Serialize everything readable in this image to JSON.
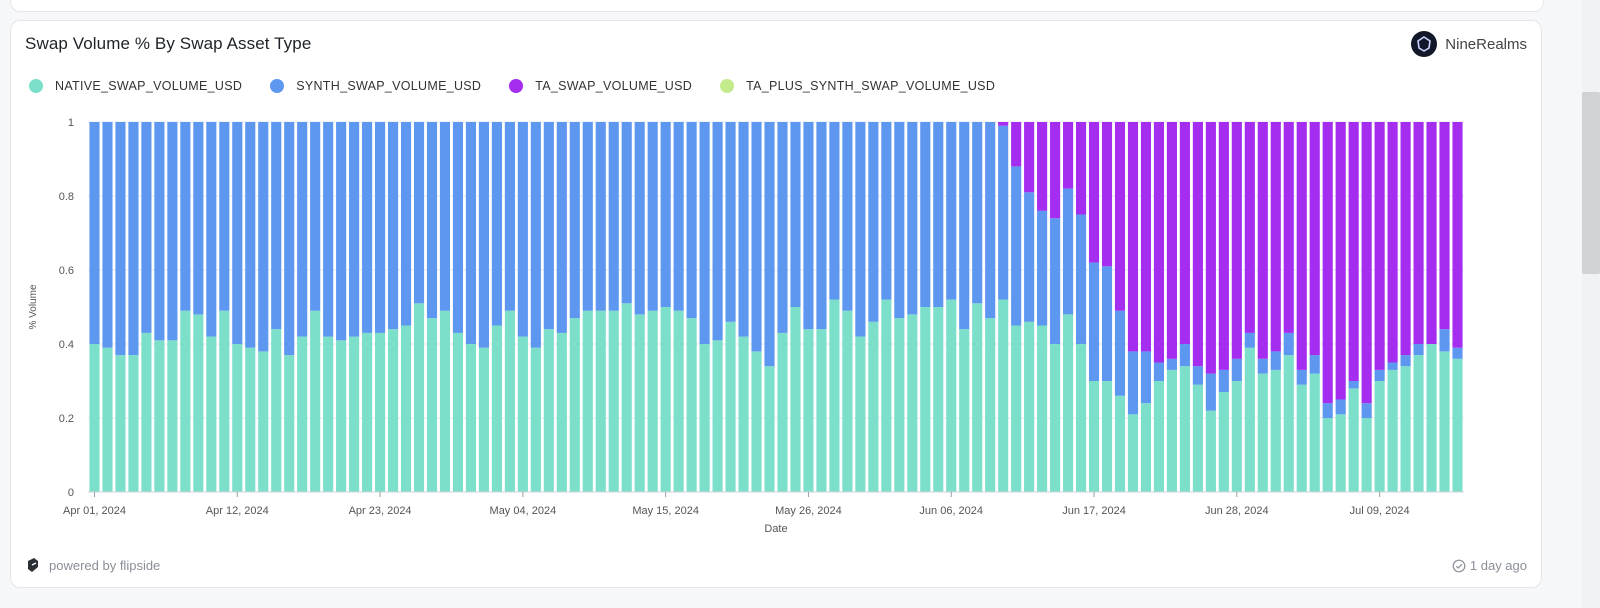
{
  "card": {
    "title": "Swap Volume % By Swap Asset Type",
    "brand": "NineRealms",
    "powered_by": "powered by flipside",
    "updated": "1 day ago"
  },
  "colors": {
    "native": "#7bdfca",
    "synth": "#5e97f0",
    "ta": "#a52df0",
    "ta_plus_synth": "#c3eb8c"
  },
  "chart_data": {
    "type": "bar",
    "stacked": true,
    "normalized": true,
    "title": "Swap Volume % By Swap Asset Type",
    "xlabel": "Date",
    "ylabel": "% Volume",
    "ylim": [
      0,
      1
    ],
    "yticks": [
      "0",
      "0.2",
      "0.4",
      "0.6",
      "0.8",
      "1"
    ],
    "xticks": [
      "Apr 01, 2024",
      "Apr 12, 2024",
      "Apr 23, 2024",
      "May 04, 2024",
      "May 15, 2024",
      "May 26, 2024",
      "Jun 06, 2024",
      "Jun 17, 2024",
      "Jun 28, 2024",
      "Jul 09, 2024"
    ],
    "x_start": "2024-04-01",
    "x_end": "2024-07-16",
    "grid": true,
    "legend_position": "top-left",
    "series": [
      {
        "name": "NATIVE_SWAP_VOLUME_USD",
        "color": "#7bdfca",
        "values": [
          0.4,
          0.39,
          0.37,
          0.37,
          0.43,
          0.41,
          0.41,
          0.49,
          0.48,
          0.42,
          0.49,
          0.4,
          0.39,
          0.38,
          0.44,
          0.37,
          0.42,
          0.49,
          0.42,
          0.41,
          0.42,
          0.43,
          0.43,
          0.44,
          0.45,
          0.51,
          0.47,
          0.49,
          0.43,
          0.4,
          0.39,
          0.45,
          0.49,
          0.42,
          0.39,
          0.44,
          0.43,
          0.47,
          0.49,
          0.49,
          0.49,
          0.51,
          0.48,
          0.49,
          0.5,
          0.49,
          0.47,
          0.4,
          0.41,
          0.46,
          0.42,
          0.38,
          0.34,
          0.43,
          0.5,
          0.44,
          0.44,
          0.52,
          0.49,
          0.42,
          0.46,
          0.52,
          0.47,
          0.48,
          0.5,
          0.5,
          0.52,
          0.44,
          0.51,
          0.47,
          0.52,
          0.45,
          0.46,
          0.45,
          0.4,
          0.48,
          0.4,
          0.3,
          0.3,
          0.26,
          0.21,
          0.24,
          0.3,
          0.33,
          0.34,
          0.29,
          0.22,
          0.27,
          0.3,
          0.39,
          0.32,
          0.33,
          0.37,
          0.29,
          0.32,
          0.2,
          0.21,
          0.28,
          0.2,
          0.3,
          0.33,
          0.34,
          0.37,
          0.4,
          0.38,
          0.36
        ]
      },
      {
        "name": "SYNTH_SWAP_VOLUME_USD",
        "color": "#5e97f0",
        "values": [
          0.6,
          0.61,
          0.63,
          0.63,
          0.57,
          0.59,
          0.59,
          0.51,
          0.52,
          0.58,
          0.51,
          0.6,
          0.61,
          0.62,
          0.56,
          0.63,
          0.58,
          0.51,
          0.58,
          0.59,
          0.58,
          0.57,
          0.57,
          0.56,
          0.55,
          0.49,
          0.53,
          0.51,
          0.57,
          0.6,
          0.61,
          0.55,
          0.51,
          0.58,
          0.61,
          0.56,
          0.57,
          0.53,
          0.51,
          0.51,
          0.51,
          0.49,
          0.52,
          0.51,
          0.5,
          0.51,
          0.53,
          0.6,
          0.59,
          0.54,
          0.58,
          0.62,
          0.66,
          0.57,
          0.5,
          0.56,
          0.56,
          0.48,
          0.51,
          0.58,
          0.54,
          0.48,
          0.53,
          0.52,
          0.5,
          0.5,
          0.48,
          0.56,
          0.49,
          0.53,
          0.47,
          0.43,
          0.35,
          0.31,
          0.34,
          0.34,
          0.35,
          0.32,
          0.31,
          0.23,
          0.17,
          0.14,
          0.05,
          0.03,
          0.06,
          0.05,
          0.1,
          0.06,
          0.06,
          0.04,
          0.04,
          0.05,
          0.06,
          0.04,
          0.05,
          0.04,
          0.04,
          0.02,
          0.04,
          0.03,
          0.02,
          0.03,
          0.03,
          0.0,
          0.06,
          0.03
        ]
      },
      {
        "name": "TA_SWAP_VOLUME_USD",
        "color": "#a52df0",
        "values": [
          0,
          0,
          0,
          0,
          0,
          0,
          0,
          0,
          0,
          0,
          0,
          0,
          0,
          0,
          0,
          0,
          0,
          0,
          0,
          0,
          0,
          0,
          0,
          0,
          0,
          0,
          0,
          0,
          0,
          0,
          0,
          0,
          0,
          0,
          0,
          0,
          0,
          0,
          0,
          0,
          0,
          0,
          0,
          0,
          0,
          0,
          0,
          0,
          0,
          0,
          0,
          0,
          0,
          0,
          0,
          0,
          0,
          0,
          0,
          0,
          0,
          0,
          0,
          0,
          0,
          0,
          0,
          0,
          0,
          0,
          0.01,
          0.12,
          0.19,
          0.24,
          0.26,
          0.18,
          0.25,
          0.38,
          0.39,
          0.51,
          0.62,
          0.62,
          0.65,
          0.64,
          0.6,
          0.66,
          0.68,
          0.67,
          0.64,
          0.57,
          0.64,
          0.62,
          0.57,
          0.67,
          0.63,
          0.76,
          0.75,
          0.7,
          0.76,
          0.67,
          0.65,
          0.63,
          0.6,
          0.6,
          0.56,
          0.61
        ]
      },
      {
        "name": "TA_PLUS_SYNTH_SWAP_VOLUME_USD",
        "color": "#c3eb8c",
        "values": [
          0,
          0,
          0,
          0,
          0,
          0,
          0,
          0,
          0,
          0,
          0,
          0,
          0,
          0,
          0,
          0,
          0,
          0,
          0,
          0,
          0,
          0,
          0,
          0,
          0,
          0,
          0,
          0,
          0,
          0,
          0,
          0,
          0,
          0,
          0,
          0,
          0,
          0,
          0,
          0,
          0,
          0,
          0,
          0,
          0,
          0,
          0,
          0,
          0,
          0,
          0,
          0,
          0,
          0,
          0,
          0,
          0,
          0,
          0,
          0,
          0,
          0,
          0,
          0,
          0,
          0,
          0,
          0,
          0,
          0,
          0,
          0,
          0,
          0,
          0,
          0,
          0,
          0,
          0,
          0,
          0,
          0,
          0,
          0,
          0,
          0,
          0,
          0,
          0,
          0,
          0,
          0,
          0,
          0,
          0,
          0,
          0,
          0,
          0,
          0,
          0,
          0,
          0,
          0,
          0,
          0
        ]
      }
    ]
  }
}
